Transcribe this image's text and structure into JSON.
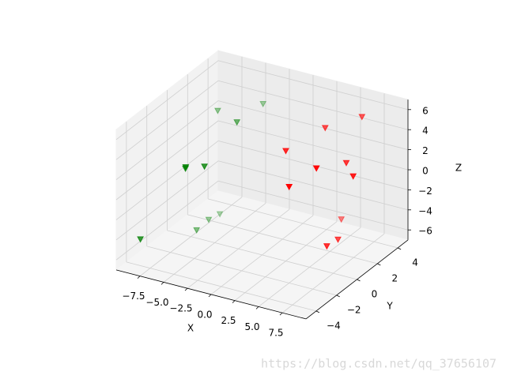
{
  "chart_data": {
    "type": "scatter3d",
    "xlabel": "X",
    "ylabel": "Y",
    "zlabel": "Z",
    "xlim": [
      -10,
      10
    ],
    "ylim": [
      -5,
      5
    ],
    "zlim": [
      -7,
      7
    ],
    "xticks": [
      {
        "value": -7.5,
        "label": "−7.5"
      },
      {
        "value": -5,
        "label": "−5.0"
      },
      {
        "value": -2.5,
        "label": "−2.5"
      },
      {
        "value": 0,
        "label": "0.0"
      },
      2.5,
      {
        "value": 5,
        "label": "5.0"
      },
      7.5
    ],
    "yticks": [
      {
        "value": -4,
        "label": "−4"
      },
      {
        "value": -2,
        "label": "−2"
      },
      0,
      2,
      4
    ],
    "zticks": [
      {
        "value": -6,
        "label": "−6"
      },
      {
        "value": -4,
        "label": "−4"
      },
      {
        "value": -2,
        "label": "−2"
      },
      0,
      2,
      4,
      6
    ],
    "grid": true,
    "depthshade": true,
    "marker": "v",
    "series": [
      {
        "color": "#008000",
        "x": [
          -7.9,
          -4.2,
          -4.8,
          -5.9,
          -7.0,
          -5.0,
          -9.6,
          -6.9,
          -6.7,
          -6.6
        ],
        "y": [
          3,
          4,
          2,
          -2,
          -1,
          -1,
          -3,
          0,
          1,
          2
        ],
        "z": [
          3.1,
          3.9,
          3.5,
          1.9,
          0.7,
          1.4,
          -5.4,
          -6.2,
          -5.9,
          -6.1
        ]
      },
      {
        "color": "#ff0000",
        "x": [
          4.5,
          7.3,
          2.5,
          6.8,
          7.8,
          9.6,
          5.0,
          6.2,
          8.0,
          7.9
        ],
        "y": [
          2,
          3,
          0,
          -1,
          1,
          0,
          -2,
          2,
          0,
          -1
        ],
        "z": [
          5.2,
          6.2,
          4.0,
          4.1,
          3.3,
          3.2,
          2.6,
          -3.5,
          -3.5,
          -3.4
        ]
      }
    ],
    "watermark": "https://blog.csdn.net/qq_37656107"
  }
}
